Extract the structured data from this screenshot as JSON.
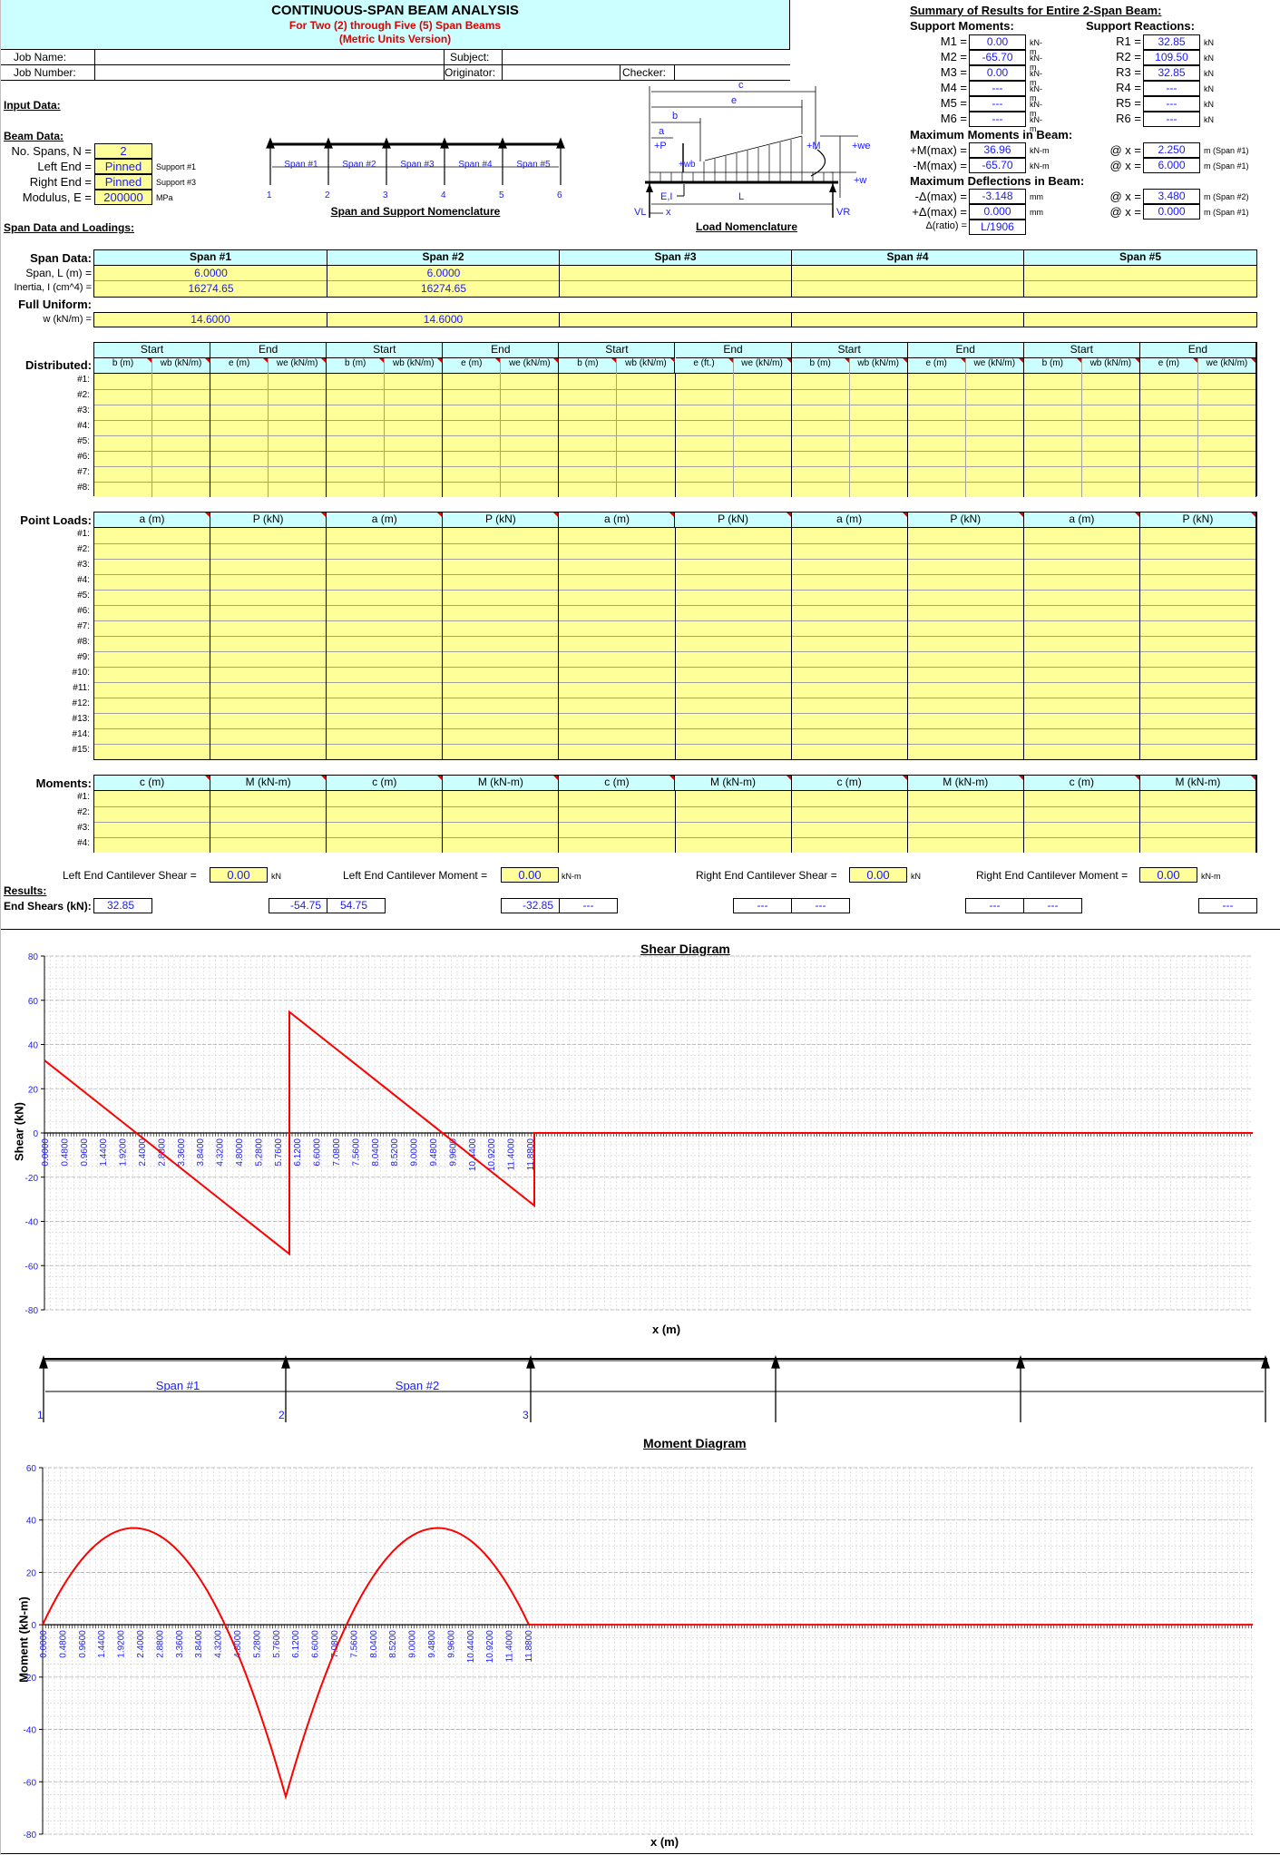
{
  "header": {
    "title": "CONTINUOUS-SPAN BEAM ANALYSIS",
    "subtitle": "For Two (2) through Five (5) Span Beams",
    "version": "(Metric Units Version)",
    "job_name_label": "Job Name:",
    "job_number_label": "Job Number:",
    "subject_label": "Subject:",
    "originator_label": "Originator:",
    "checker_label": "Checker:",
    "job_name": "",
    "job_number": "",
    "subject": "",
    "originator": "",
    "checker": ""
  },
  "input": {
    "section_label": "Input Data:",
    "beam_data_label": "Beam Data:",
    "num_spans_label": "No. Spans, N =",
    "num_spans": "2",
    "left_end_label": "Left End =",
    "left_end": "Pinned",
    "left_end_note": "Support #1",
    "right_end_label": "Right End =",
    "right_end": "Pinned",
    "right_end_note": "Support #3",
    "modulus_label": "Modulus, E =",
    "modulus": "200000",
    "modulus_unit": "MPa",
    "span_loadings_label": "Span Data and Loadings:"
  },
  "span_nomenclature": {
    "title": "Span and Support Nomenclature",
    "spans": [
      "Span #1",
      "Span #2",
      "Span #3",
      "Span #4",
      "Span #5"
    ],
    "supports": [
      "1",
      "2",
      "3",
      "4",
      "5",
      "6"
    ]
  },
  "load_nomenclature": {
    "title": "Load Nomenclature",
    "labels": {
      "c": "c",
      "e": "e",
      "b": "b",
      "a": "a",
      "P": "+P",
      "wb": "+wb",
      "M": "+M",
      "we": "+we",
      "w": "+w",
      "EI": "E,I",
      "L": "L",
      "VL": "VL",
      "VR": "VR",
      "x": "x"
    }
  },
  "summary": {
    "title": "Summary of Results for Entire 2-Span Beam:",
    "support_moments_label": "Support Moments:",
    "support_reactions_label": "Support Reactions:",
    "moments": [
      {
        "label": "M1 =",
        "value": "0.00",
        "unit": "kN-m"
      },
      {
        "label": "M2 =",
        "value": "-65.70",
        "unit": "kN-m"
      },
      {
        "label": "M3 =",
        "value": "0.00",
        "unit": "kN-m"
      },
      {
        "label": "M4 =",
        "value": "---",
        "unit": "kN-m"
      },
      {
        "label": "M5 =",
        "value": "---",
        "unit": "kN-m"
      },
      {
        "label": "M6 =",
        "value": "---",
        "unit": "kN-m"
      }
    ],
    "reactions": [
      {
        "label": "R1 =",
        "value": "32.85",
        "unit": "kN"
      },
      {
        "label": "R2 =",
        "value": "109.50",
        "unit": "kN"
      },
      {
        "label": "R3 =",
        "value": "32.85",
        "unit": "kN"
      },
      {
        "label": "R4 =",
        "value": "---",
        "unit": "kN"
      },
      {
        "label": "R5 =",
        "value": "---",
        "unit": "kN"
      },
      {
        "label": "R6 =",
        "value": "---",
        "unit": "kN"
      }
    ],
    "max_moments_label": "Maximum Moments in Beam:",
    "pos_mmax_label": "+M(max) =",
    "pos_mmax": "36.96",
    "pos_mmax_unit": "kN-m",
    "pos_mmax_x_label": "@ x =",
    "pos_mmax_x": "2.250",
    "pos_mmax_x_unit": "m (Span #1)",
    "neg_mmax_label": "-M(max) =",
    "neg_mmax": "-65.70",
    "neg_mmax_unit": "kN-m",
    "neg_mmax_x_label": "@ x =",
    "neg_mmax_x": "6.000",
    "neg_mmax_x_unit": "m (Span #1)",
    "max_defl_label": "Maximum Deflections in Beam:",
    "neg_dmax_label": "-Δ(max) =",
    "neg_dmax": "-3.148",
    "neg_dmax_unit": "mm",
    "neg_dmax_x_label": "@ x =",
    "neg_dmax_x": "3.480",
    "neg_dmax_x_unit": "m (Span #2)",
    "pos_dmax_label": "+Δ(max) =",
    "pos_dmax": "0.000",
    "pos_dmax_unit": "mm",
    "pos_dmax_x_label": "@ x =",
    "pos_dmax_x": "0.000",
    "pos_dmax_x_unit": "m (Span #1)",
    "ratio_label": "Δ(ratio) =",
    "ratio": "L/1906"
  },
  "span_data": {
    "label": "Span Data:",
    "headers": [
      "Span #1",
      "Span #2",
      "Span #3",
      "Span #4",
      "Span #5"
    ],
    "span_label": "Span, L (m) =",
    "spans": [
      "6.0000",
      "6.0000",
      "",
      "",
      ""
    ],
    "inertia_label": "Inertia, I (cm^4) =",
    "inertia": [
      "16274.65",
      "16274.65",
      "",
      "",
      ""
    ],
    "full_uniform_label": "Full Uniform:",
    "w_label": "w (kN/m) =",
    "w": [
      "14.6000",
      "14.6000",
      "",
      "",
      ""
    ]
  },
  "distributed": {
    "label": "Distributed:",
    "group_headers": [
      "Start",
      "End"
    ],
    "col_headers": [
      [
        "b (m)",
        "wb (kN/m)",
        "e (m)",
        "we (kN/m)"
      ],
      [
        "b (m)",
        "wb (kN/m)",
        "e (m)",
        "we (kN/m)"
      ],
      [
        "b (m)",
        "wb (kN/m)",
        "e (ft.)",
        "we (kN/m)"
      ],
      [
        "b (m)",
        "wb (kN/m)",
        "e (m)",
        "we (kN/m)"
      ],
      [
        "b (m)",
        "wb (kN/m)",
        "e (m)",
        "we (kN/m)"
      ]
    ],
    "rows": [
      "#1:",
      "#2:",
      "#3:",
      "#4:",
      "#5:",
      "#6:",
      "#7:",
      "#8:"
    ]
  },
  "point_loads": {
    "label": "Point Loads:",
    "col_headers": [
      "a (m)",
      "P (kN)"
    ],
    "rows": [
      "#1:",
      "#2:",
      "#3:",
      "#4:",
      "#5:",
      "#6:",
      "#7:",
      "#8:",
      "#9:",
      "#10:",
      "#11:",
      "#12:",
      "#13:",
      "#14:",
      "#15:"
    ]
  },
  "moments": {
    "label": "Moments:",
    "col_headers": [
      "c (m)",
      "M (kN-m)"
    ],
    "rows": [
      "#1:",
      "#2:",
      "#3:",
      "#4:"
    ]
  },
  "cantilever": {
    "left_shear_label": "Left End Cantilever Shear =",
    "left_shear": "0.00",
    "left_shear_unit": "kN",
    "left_moment_label": "Left End Cantilever Moment =",
    "left_moment": "0.00",
    "left_moment_unit": "kN-m",
    "right_shear_label": "Right End Cantilever Shear =",
    "right_shear": "0.00",
    "right_shear_unit": "kN",
    "right_moment_label": "Right End Cantilever Moment =",
    "right_moment": "0.00",
    "right_moment_unit": "kN-m"
  },
  "results": {
    "label": "Results:",
    "end_shears_label": "End Shears (kN):",
    "end_shears": [
      [
        "32.85",
        "-54.75"
      ],
      [
        "54.75",
        "-32.85"
      ],
      [
        "---",
        "---"
      ],
      [
        "---",
        "---"
      ],
      [
        "---",
        "---"
      ]
    ]
  },
  "chart_data": [
    {
      "type": "line",
      "title": "Shear Diagram",
      "xlabel": "x (m)",
      "ylabel": "Shear (kN)",
      "ylim": [
        -80,
        80
      ],
      "yticks": [
        80,
        60,
        40,
        20,
        0,
        -20,
        -40,
        -60,
        -80
      ],
      "xtick_labels": [
        "0.0000",
        "0.4800",
        "0.9600",
        "1.4400",
        "1.9200",
        "2.4000",
        "2.8800",
        "3.3600",
        "3.8400",
        "4.3200",
        "4.8000",
        "5.2800",
        "5.7600",
        "6.1200",
        "6.6000",
        "7.0800",
        "7.5600",
        "8.0400",
        "8.5200",
        "9.0000",
        "9.4800",
        "9.9600",
        "10.4400",
        "10.9200",
        "11.4000",
        "11.8800"
      ],
      "grid": true,
      "series": [
        {
          "name": "Shear",
          "color": "#ff0000",
          "x": [
            0,
            6.0,
            6.0,
            12.0,
            12.0,
            30.0
          ],
          "values": [
            32.85,
            -54.75,
            54.75,
            -32.85,
            0,
            0
          ]
        }
      ]
    },
    {
      "type": "line",
      "title": "Moment Diagram",
      "xlabel": "x (m)",
      "ylabel": "Moment (kN-m)",
      "ylim": [
        -80,
        60
      ],
      "yticks": [
        60,
        40,
        20,
        0,
        -20,
        -40,
        -60,
        -80
      ],
      "xtick_labels": [
        "0.0000",
        "0.4800",
        "0.9600",
        "1.4400",
        "1.9200",
        "2.4000",
        "2.8800",
        "3.3600",
        "3.8400",
        "4.3200",
        "4.8000",
        "5.2800",
        "5.7600",
        "6.1200",
        "6.6000",
        "7.0800",
        "7.5600",
        "8.0400",
        "8.5200",
        "9.0000",
        "9.4800",
        "9.9600",
        "10.4400",
        "10.9200",
        "11.4000",
        "11.8800"
      ],
      "grid": true,
      "series": [
        {
          "name": "Moment",
          "color": "#ff0000",
          "x": [
            0,
            0.75,
            1.5,
            2.25,
            3.0,
            3.75,
            4.5,
            5.25,
            6.0,
            6.75,
            7.5,
            8.25,
            9.0,
            9.75,
            10.5,
            11.25,
            12.0,
            30.0
          ],
          "values": [
            0,
            20.53,
            32.85,
            36.96,
            32.85,
            20.53,
            0,
            -28.75,
            -65.7,
            -28.75,
            0,
            20.53,
            32.85,
            36.96,
            32.85,
            20.53,
            0,
            0
          ]
        }
      ]
    }
  ],
  "beam_strip": {
    "spans": [
      "Span #1",
      "Span #2",
      "",
      "",
      ""
    ],
    "supports": [
      "1",
      "2",
      "3",
      "",
      "",
      ""
    ]
  }
}
